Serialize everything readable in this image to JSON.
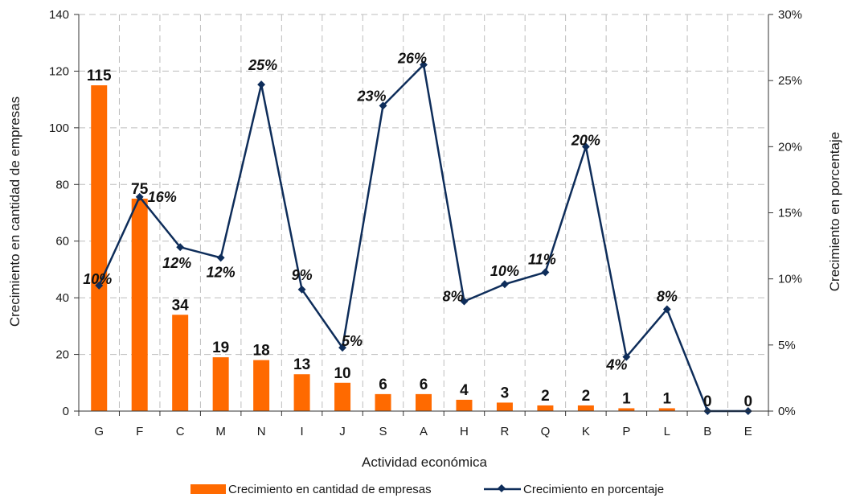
{
  "chart_data": {
    "type": "bar",
    "xlabel": "Actividad económica",
    "ylabel": "Crecimiento en cantidad de empresas",
    "y2label": "Crecimiento en porcentaje",
    "categories": [
      "G",
      "F",
      "C",
      "M",
      "N",
      "I",
      "J",
      "S",
      "A",
      "H",
      "R",
      "Q",
      "K",
      "P",
      "L",
      "B",
      "E"
    ],
    "ylim": [
      0,
      140
    ],
    "y2lim": [
      0,
      30
    ],
    "yticks": [
      "0",
      "20",
      "40",
      "60",
      "80",
      "100",
      "120",
      "140"
    ],
    "y2ticks": [
      "0%",
      "5%",
      "10%",
      "15%",
      "20%",
      "25%",
      "30%"
    ],
    "grid": true,
    "legend_position": "bottom",
    "series": [
      {
        "name": "Crecimiento en cantidad de empresas",
        "type": "bar",
        "color": "#ff6a00",
        "values": [
          115,
          75,
          34,
          19,
          18,
          13,
          10,
          6,
          6,
          4,
          3,
          2,
          2,
          1,
          1,
          0,
          0
        ],
        "labels": [
          "115",
          "75",
          "34",
          "19",
          "18",
          "13",
          "10",
          "6",
          "6",
          "4",
          "3",
          "2",
          "2",
          "1",
          "1",
          "0",
          "0"
        ]
      },
      {
        "name": "Crecimiento en porcentaje",
        "type": "line",
        "axis": "right",
        "color": "#0e2d5a",
        "values": [
          9.5,
          16.2,
          12.4,
          11.6,
          24.7,
          9.2,
          4.8,
          23.1,
          26.2,
          8.3,
          9.6,
          10.5,
          20.0,
          4.1,
          7.7,
          0,
          0
        ],
        "labels": [
          "10%",
          "16%",
          "12%",
          "12%",
          "25%",
          "9%",
          "5%",
          "23%",
          "26%",
          "8%",
          "10%",
          "11%",
          "20%",
          "4%",
          "8%",
          "",
          ""
        ]
      }
    ]
  }
}
